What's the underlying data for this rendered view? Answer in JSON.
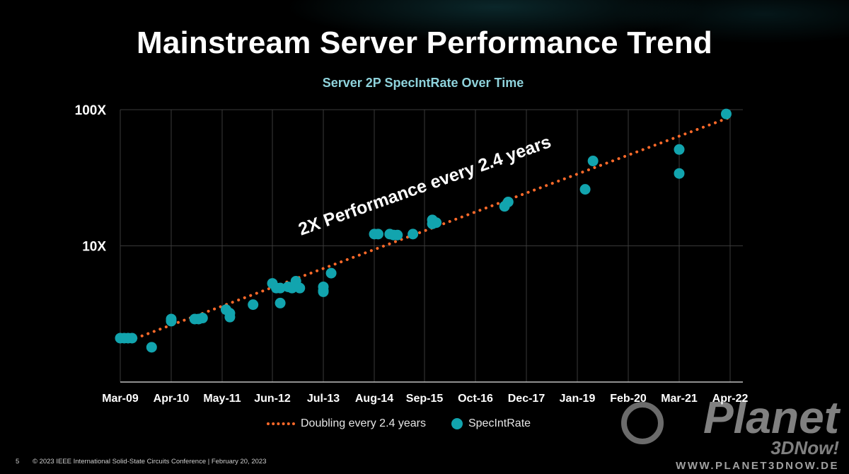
{
  "page": {
    "title": "Mainstream Server Performance Trend",
    "footer_page": "5",
    "footer_text": "© 2023 IEEE International Solid-State Circuits Conference | February 20, 2023",
    "watermark_brand": "Planet",
    "watermark_sub": "3DNow!",
    "watermark_url": "WWW.PLANET3DNOW.DE"
  },
  "chart_data": {
    "type": "scatter",
    "title": "Server 2P SpecIntRate Over Time",
    "xlabel": "",
    "ylabel": "",
    "y_scale": "log",
    "ylim": [
      1,
      100
    ],
    "y_ticks": [
      {
        "value": 10,
        "label": "10X"
      },
      {
        "value": 100,
        "label": "100X"
      }
    ],
    "x_ticks": [
      "2009-03",
      "2010-04",
      "2011-05",
      "2012-06",
      "2013-07",
      "2014-08",
      "2015-09",
      "2016-10",
      "2017-12",
      "2019-01",
      "2020-02",
      "2021-03",
      "2022-04"
    ],
    "x_tick_labels": [
      "Mar-09",
      "Apr-10",
      "May-11",
      "Jun-12",
      "Jul-13",
      "Aug-14",
      "Sep-15",
      "Oct-16",
      "Dec-17",
      "Jan-19",
      "Feb-20",
      "Mar-21",
      "Apr-22"
    ],
    "grid": {
      "vertical": true,
      "horizontal": true
    },
    "legend_position": "bottom",
    "colors": {
      "trend": "#ff6a2a",
      "points": "#12a4ae",
      "grid": "#3a3a3a"
    },
    "series": [
      {
        "name": "Doubling every 2.4 years",
        "kind": "trend",
        "points": [
          {
            "x": "2009-07",
            "y": 2.1
          },
          {
            "x": "2022-04",
            "y": 88
          }
        ]
      },
      {
        "name": "SpecIntRate",
        "kind": "scatter",
        "points": [
          {
            "x": "2009-03",
            "y": 2.1
          },
          {
            "x": "2009-04",
            "y": 2.1
          },
          {
            "x": "2009-05",
            "y": 2.1
          },
          {
            "x": "2009-06",
            "y": 2.1
          },
          {
            "x": "2009-11",
            "y": 1.8
          },
          {
            "x": "2010-04",
            "y": 2.9
          },
          {
            "x": "2010-04",
            "y": 2.8
          },
          {
            "x": "2010-10",
            "y": 2.9
          },
          {
            "x": "2010-11",
            "y": 2.9
          },
          {
            "x": "2010-12",
            "y": 2.95
          },
          {
            "x": "2011-06",
            "y": 3.4
          },
          {
            "x": "2011-07",
            "y": 3.2
          },
          {
            "x": "2011-07",
            "y": 3.0
          },
          {
            "x": "2012-01",
            "y": 3.7
          },
          {
            "x": "2012-06",
            "y": 5.3
          },
          {
            "x": "2012-07",
            "y": 4.9
          },
          {
            "x": "2012-08",
            "y": 3.8
          },
          {
            "x": "2012-08",
            "y": 4.9
          },
          {
            "x": "2012-10",
            "y": 5.0
          },
          {
            "x": "2012-11",
            "y": 4.9
          },
          {
            "x": "2012-12",
            "y": 5.5
          },
          {
            "x": "2013-01",
            "y": 4.9
          },
          {
            "x": "2013-07",
            "y": 5.0
          },
          {
            "x": "2013-07",
            "y": 4.6
          },
          {
            "x": "2013-07",
            "y": 4.7
          },
          {
            "x": "2013-09",
            "y": 6.3
          },
          {
            "x": "2014-08",
            "y": 12.2
          },
          {
            "x": "2014-09",
            "y": 12.2
          },
          {
            "x": "2014-12",
            "y": 12.2
          },
          {
            "x": "2015-01",
            "y": 12.0
          },
          {
            "x": "2015-02",
            "y": 12.0
          },
          {
            "x": "2015-06",
            "y": 12.2
          },
          {
            "x": "2015-11",
            "y": 14.5
          },
          {
            "x": "2015-11",
            "y": 15.5
          },
          {
            "x": "2015-12",
            "y": 14.8
          },
          {
            "x": "2017-06",
            "y": 19.5
          },
          {
            "x": "2017-07",
            "y": 21.0
          },
          {
            "x": "2019-03",
            "y": 26.0
          },
          {
            "x": "2019-05",
            "y": 42.0
          },
          {
            "x": "2021-03",
            "y": 51.0
          },
          {
            "x": "2021-03",
            "y": 34.0
          },
          {
            "x": "2022-03",
            "y": 93.0
          }
        ]
      }
    ],
    "annotation": "2X Performance every 2.4 years"
  }
}
